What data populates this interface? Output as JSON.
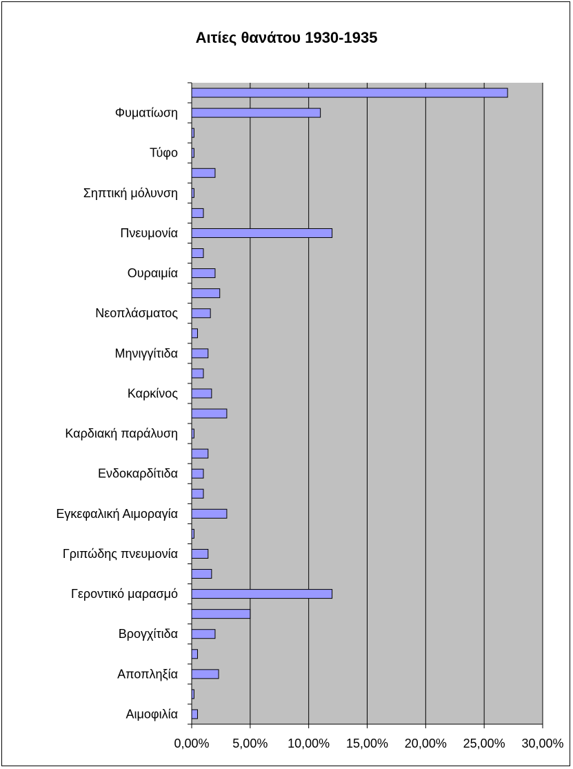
{
  "chart_data": {
    "type": "bar",
    "orientation": "horizontal",
    "title": "Αιτίες θανάτου 1930-1935",
    "xlabel": "",
    "ylabel": "",
    "xlim": [
      0,
      0.3
    ],
    "x_ticks": [
      0,
      0.05,
      0.1,
      0.15,
      0.2,
      0.25,
      0.3
    ],
    "x_tick_labels": [
      "0,00%",
      "5,00%",
      "10,00%",
      "15,00%",
      "20,00%",
      "25,00%",
      "30,00%"
    ],
    "grid": "vertical",
    "legend": "none",
    "categories": [
      "",
      "Φυματίωση",
      "",
      "Τύφο",
      "",
      "Σηπτική μόλυνση",
      "",
      "Πνευμονία",
      "",
      "Ουραιμία",
      "",
      "Νεοπλάσματος",
      "",
      "Μηνιγγίτιδα",
      "",
      "Καρκίνος",
      "",
      "Καρδιακή παράλυση",
      "",
      "Ενδοκαρδίτιδα",
      "",
      "Εγκεφαλική Αιμοραγία",
      "",
      "Γριπώδης πνευμονία",
      "",
      "Γεροντικό μαρασμό",
      "",
      "Βρογχίτιδα",
      "",
      "Αποπληξία",
      "",
      "Αιμοφιλία"
    ],
    "values": [
      0.27,
      0.11,
      0.002,
      0.002,
      0.02,
      0.002,
      0.01,
      0.12,
      0.01,
      0.02,
      0.024,
      0.016,
      0.005,
      0.014,
      0.01,
      0.017,
      0.03,
      0.002,
      0.014,
      0.01,
      0.01,
      0.03,
      0.002,
      0.014,
      0.017,
      0.12,
      0.05,
      0.02,
      0.005,
      0.023,
      0.002,
      0.005
    ]
  },
  "colors": {
    "plot_background": "#c0c0c0",
    "bar_fill": "#9999ff",
    "bar_stroke": "#000000",
    "gridline": "#000000"
  }
}
